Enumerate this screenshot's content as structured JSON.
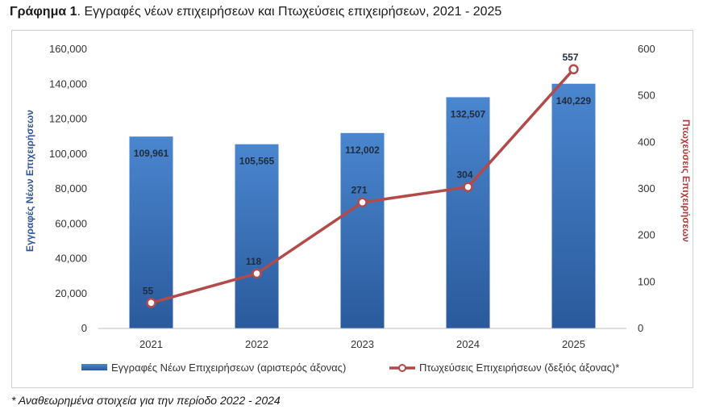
{
  "title": {
    "prefix": "Γράφημα 1",
    "suffix": ". Εγγραφές νέων επιχειρήσεων και Πτωχεύσεις επιχειρήσεων, 2021 - 2025"
  },
  "footnote": "* Αναθεωρημένα στοιχεία για την περίοδο 2022 - 2024",
  "colors": {
    "bar_top": "#4a86cf",
    "bar_bottom": "#2a5a9c",
    "line": "#b24a4a",
    "left_axis_title": "#2f5496",
    "right_axis_title": "#b23a3a"
  },
  "chart_data": {
    "type": "bar+line",
    "categories": [
      "2021",
      "2022",
      "2023",
      "2024",
      "2025"
    ],
    "series": [
      {
        "name": "Εγγραφές Νέων Επιχειρήσεων (αριστερός άξονας)",
        "type": "bar",
        "axis": "left",
        "values": [
          109961,
          105565,
          112002,
          132507,
          140229
        ],
        "labels": [
          "109,961",
          "105,565",
          "112,002",
          "132,507",
          "140,229"
        ]
      },
      {
        "name": "Πτωχεύσεις Επιχειρήσεων (δεξιός άξονας)*",
        "type": "line",
        "axis": "right",
        "values": [
          55,
          118,
          271,
          304,
          557
        ],
        "labels": [
          "55",
          "118",
          "271",
          "304",
          "557"
        ]
      }
    ],
    "y_left": {
      "label": "Εγγραφές Νέων Επιχειρήσεων",
      "min": 0,
      "max": 160000,
      "ticks": [
        "0",
        "20,000",
        "40,000",
        "60,000",
        "80,000",
        "100,000",
        "120,000",
        "140,000",
        "160,000"
      ]
    },
    "y_right": {
      "label": "Πτωχεύσεις Επιχειρήσεων",
      "min": 0,
      "max": 600,
      "ticks": [
        "0",
        "100",
        "200",
        "300",
        "400",
        "500",
        "600"
      ]
    },
    "grid": false,
    "legend_position": "bottom"
  }
}
